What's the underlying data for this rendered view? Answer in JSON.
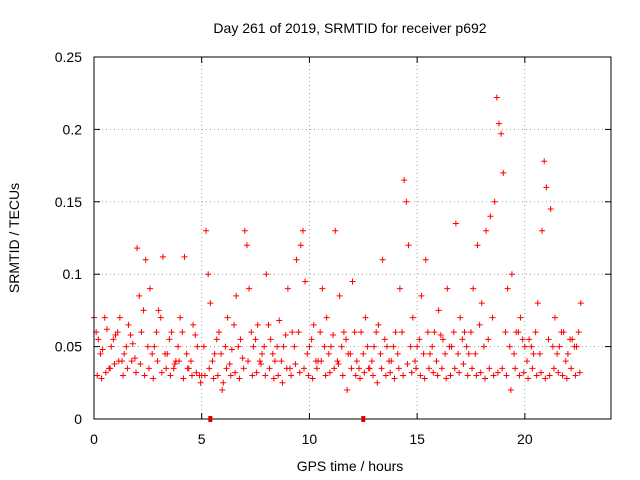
{
  "chart_data": {
    "type": "scatter",
    "title": "Day 261 of 2019, SRMTID for receiver p692",
    "xlabel": "GPS time / hours",
    "ylabel": "SRMTID / TECUs",
    "xlim": [
      0,
      24
    ],
    "ylim": [
      0,
      0.25
    ],
    "xticks": [
      0,
      5,
      10,
      15,
      20
    ],
    "xtick_labels": [
      "0",
      "5",
      "10",
      "15",
      "20"
    ],
    "yticks": [
      0,
      0.05,
      0.1,
      0.15,
      0.2,
      0.25
    ],
    "ytick_labels": [
      "0",
      "0.05",
      "0.1",
      "0.15",
      "0.2",
      "0.25"
    ],
    "grid": true,
    "marker": "+",
    "series": [
      {
        "name": "SRMTID",
        "color": "#ff0000",
        "x": [
          0.0,
          0.2,
          0.4,
          0.6,
          0.8,
          1.0,
          1.2,
          1.4,
          1.6,
          1.8,
          2.0,
          2.1,
          2.2,
          2.4,
          2.6,
          2.8,
          3.0,
          3.2,
          3.4,
          3.6,
          3.8,
          4.0,
          4.2,
          4.4,
          4.6,
          4.8,
          5.0,
          5.2,
          5.3,
          5.4,
          5.6,
          5.8,
          6.0,
          6.2,
          6.4,
          6.6,
          6.8,
          7.0,
          7.1,
          7.2,
          7.4,
          7.6,
          7.8,
          8.0,
          8.2,
          8.4,
          8.6,
          8.8,
          9.0,
          9.2,
          9.4,
          9.6,
          9.7,
          9.8,
          10.0,
          10.2,
          10.4,
          10.6,
          10.8,
          11.0,
          11.2,
          11.4,
          11.6,
          11.8,
          12.0,
          12.2,
          12.4,
          12.6,
          12.8,
          13.0,
          13.2,
          13.4,
          13.6,
          13.8,
          14.0,
          14.2,
          14.4,
          14.5,
          14.6,
          14.8,
          15.0,
          15.2,
          15.4,
          15.6,
          15.8,
          16.0,
          16.2,
          16.4,
          16.6,
          16.8,
          17.0,
          17.2,
          17.4,
          17.6,
          17.8,
          18.0,
          18.2,
          18.4,
          18.6,
          18.7,
          18.8,
          18.9,
          19.0,
          19.2,
          19.4,
          19.6,
          19.8,
          20.0,
          20.2,
          20.4,
          20.6,
          20.8,
          20.9,
          21.0,
          21.2,
          21.4,
          21.6,
          21.8,
          22.0,
          22.2,
          22.4,
          22.6,
          0.1,
          0.3,
          0.5,
          0.7,
          0.9,
          1.1,
          1.3,
          1.5,
          1.7,
          1.9,
          2.3,
          2.5,
          2.7,
          2.9,
          3.1,
          3.3,
          3.5,
          3.7,
          3.9,
          4.1,
          4.3,
          4.5,
          4.7,
          4.9,
          5.1,
          5.5,
          5.7,
          5.9,
          6.1,
          6.3,
          6.5,
          6.7,
          6.9,
          7.3,
          7.5,
          7.7,
          7.9,
          8.1,
          8.3,
          8.5,
          8.7,
          8.9,
          9.1,
          9.3,
          9.5,
          9.9,
          10.1,
          10.3,
          10.5,
          10.7,
          10.9,
          11.1,
          11.3,
          11.5,
          11.7,
          11.9,
          12.1,
          12.3,
          12.5,
          12.7,
          12.9,
          13.1,
          13.3,
          13.5,
          13.7,
          13.9,
          14.1,
          14.3,
          14.7,
          14.9,
          15.1,
          15.3,
          15.5,
          15.7,
          15.9,
          16.1,
          16.3,
          16.5,
          16.7,
          16.9,
          17.1,
          17.3,
          17.5,
          17.7,
          17.9,
          18.1,
          18.3,
          18.5,
          19.1,
          19.3,
          19.5,
          19.7,
          19.9,
          20.1,
          20.3,
          20.5,
          20.7,
          21.1,
          21.3,
          21.5,
          21.7,
          21.9,
          22.1,
          22.3,
          22.5,
          0.15,
          0.35,
          0.55,
          0.75,
          0.95,
          1.15,
          1.35,
          1.55,
          1.75,
          1.95,
          2.15,
          2.35,
          2.55,
          2.75,
          2.95,
          3.15,
          3.35,
          3.55,
          3.75,
          3.95,
          4.15,
          4.35,
          4.55,
          4.75,
          4.95,
          5.15,
          5.35,
          5.55,
          5.75,
          5.95,
          6.15,
          6.35,
          6.55,
          6.75,
          6.95,
          7.15,
          7.35,
          7.55,
          7.75,
          7.95,
          8.15,
          8.35,
          8.55,
          8.75,
          8.95,
          9.15,
          9.35,
          9.55,
          9.75,
          9.95,
          10.15,
          10.35,
          10.55,
          10.75,
          10.95,
          11.15,
          11.35,
          11.55,
          11.75,
          11.95,
          12.15,
          12.35,
          12.55,
          12.75,
          12.95,
          13.15,
          13.35,
          13.55,
          13.75,
          13.95,
          14.15,
          14.35,
          14.55,
          14.75,
          14.95,
          15.15,
          15.35,
          15.55,
          15.75,
          15.95,
          16.15,
          16.35,
          16.55,
          16.75,
          16.95,
          17.15,
          17.35,
          17.55,
          17.75,
          17.95,
          18.15,
          18.35,
          18.55,
          18.75,
          18.95,
          19.15,
          19.35,
          19.55,
          19.75,
          19.95,
          20.15,
          20.35,
          20.55,
          20.75,
          20.95,
          21.15,
          21.35,
          21.55,
          21.75,
          21.95,
          22.15,
          22.35,
          22.55
        ],
        "y": [
          0.07,
          0.055,
          0.048,
          0.062,
          0.05,
          0.058,
          0.07,
          0.045,
          0.065,
          0.052,
          0.118,
          0.085,
          0.06,
          0.11,
          0.09,
          0.05,
          0.075,
          0.112,
          0.045,
          0.06,
          0.04,
          0.07,
          0.112,
          0.035,
          0.065,
          0.05,
          0.03,
          0.13,
          0.1,
          0.08,
          0.045,
          0.06,
          0.025,
          0.07,
          0.048,
          0.085,
          0.055,
          0.13,
          0.12,
          0.09,
          0.05,
          0.065,
          0.045,
          0.1,
          0.055,
          0.04,
          0.068,
          0.05,
          0.09,
          0.06,
          0.11,
          0.12,
          0.13,
          0.095,
          0.05,
          0.065,
          0.04,
          0.09,
          0.07,
          0.05,
          0.13,
          0.085,
          0.06,
          0.045,
          0.095,
          0.04,
          0.06,
          0.07,
          0.035,
          0.05,
          0.065,
          0.11,
          0.05,
          0.04,
          0.06,
          0.09,
          0.165,
          0.15,
          0.12,
          0.07,
          0.05,
          0.085,
          0.11,
          0.045,
          0.06,
          0.075,
          0.055,
          0.09,
          0.05,
          0.135,
          0.07,
          0.06,
          0.045,
          0.09,
          0.12,
          0.08,
          0.13,
          0.14,
          0.15,
          0.222,
          0.204,
          0.197,
          0.17,
          0.09,
          0.1,
          0.06,
          0.07,
          0.05,
          0.055,
          0.045,
          0.08,
          0.13,
          0.178,
          0.16,
          0.145,
          0.07,
          0.05,
          0.06,
          0.045,
          0.055,
          0.05,
          0.08,
          0.06,
          0.045,
          0.07,
          0.035,
          0.055,
          0.06,
          0.04,
          0.05,
          0.058,
          0.042,
          0.075,
          0.05,
          0.045,
          0.06,
          0.07,
          0.045,
          0.055,
          0.035,
          0.05,
          0.06,
          0.045,
          0.04,
          0.058,
          0.03,
          0.05,
          0.04,
          0.055,
          0.045,
          0.05,
          0.038,
          0.065,
          0.05,
          0.042,
          0.06,
          0.055,
          0.04,
          0.05,
          0.065,
          0.045,
          0.05,
          0.04,
          0.058,
          0.035,
          0.05,
          0.06,
          0.045,
          0.055,
          0.04,
          0.06,
          0.05,
          0.045,
          0.058,
          0.04,
          0.05,
          0.055,
          0.045,
          0.06,
          0.035,
          0.045,
          0.05,
          0.04,
          0.06,
          0.045,
          0.055,
          0.04,
          0.05,
          0.045,
          0.06,
          0.05,
          0.04,
          0.055,
          0.045,
          0.06,
          0.05,
          0.04,
          0.058,
          0.045,
          0.05,
          0.06,
          0.045,
          0.055,
          0.05,
          0.06,
          0.045,
          0.065,
          0.05,
          0.055,
          0.07,
          0.06,
          0.05,
          0.045,
          0.06,
          0.055,
          0.04,
          0.05,
          0.06,
          0.045,
          0.055,
          0.05,
          0.045,
          0.06,
          0.04,
          0.055,
          0.05,
          0.06,
          0.03,
          0.028,
          0.032,
          0.035,
          0.038,
          0.04,
          0.03,
          0.035,
          0.04,
          0.032,
          0.038,
          0.03,
          0.035,
          0.028,
          0.04,
          0.032,
          0.035,
          0.03,
          0.038,
          0.04,
          0.028,
          0.035,
          0.03,
          0.032,
          0.025,
          0.03,
          0.035,
          0.028,
          0.03,
          0.02,
          0.035,
          0.03,
          0.032,
          0.028,
          0.035,
          0.04,
          0.03,
          0.032,
          0.038,
          0.03,
          0.035,
          0.028,
          0.03,
          0.025,
          0.035,
          0.03,
          0.038,
          0.032,
          0.035,
          0.03,
          0.028,
          0.035,
          0.04,
          0.03,
          0.032,
          0.035,
          0.038,
          0.03,
          0.02,
          0.035,
          0.03,
          0.028,
          0.032,
          0.035,
          0.03,
          0.025,
          0.035,
          0.03,
          0.032,
          0.028,
          0.035,
          0.03,
          0.038,
          0.032,
          0.035,
          0.03,
          0.028,
          0.035,
          0.032,
          0.03,
          0.035,
          0.028,
          0.03,
          0.035,
          0.032,
          0.038,
          0.03,
          0.035,
          0.03,
          0.032,
          0.028,
          0.035,
          0.03,
          0.032,
          0.035,
          0.03,
          0.02,
          0.035,
          0.03,
          0.032,
          0.028,
          0.035,
          0.03,
          0.032,
          0.028,
          0.03,
          0.035,
          0.032,
          0.03,
          0.028,
          0.035,
          0.03,
          0.032
        ]
      }
    ],
    "axis_markers": [
      5.4,
      12.5
    ]
  }
}
